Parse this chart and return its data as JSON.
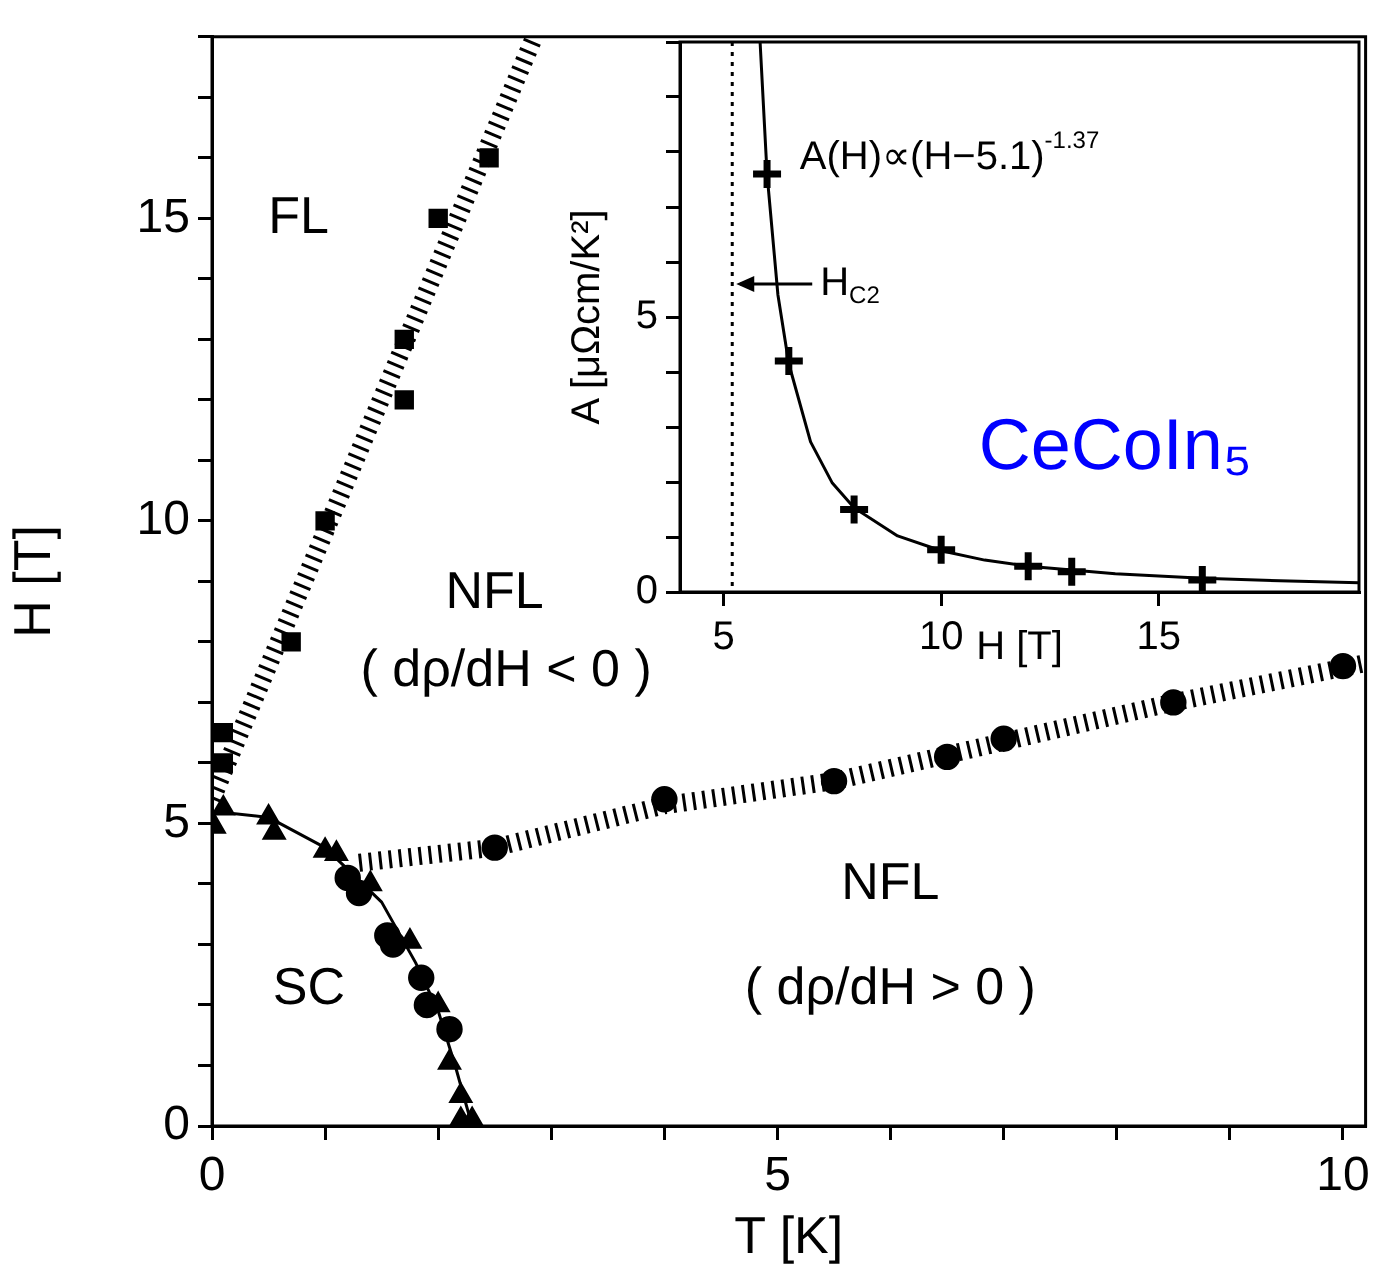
{
  "chart_data": [
    {
      "type": "scatter",
      "xlabel": "T [K]",
      "ylabel": "H [T]",
      "xlim": [
        0,
        10.2
      ],
      "ylim": [
        0,
        18
      ],
      "xticks": [
        0,
        {
          "value": 1,
          "label": null
        },
        {
          "value": 2,
          "label": null
        },
        {
          "value": 3,
          "label": null
        },
        {
          "value": 4,
          "label": null
        },
        5,
        {
          "value": 6,
          "label": null
        },
        {
          "value": 7,
          "label": null
        },
        {
          "value": 8,
          "label": null
        },
        {
          "value": 9,
          "label": null
        },
        10
      ],
      "yticks": [
        0,
        {
          "value": 1,
          "label": null
        },
        {
          "value": 2,
          "label": null
        },
        {
          "value": 3,
          "label": null
        },
        {
          "value": 4,
          "label": null
        },
        5,
        {
          "value": 6,
          "label": null
        },
        {
          "value": 7,
          "label": null
        },
        {
          "value": 8,
          "label": null
        },
        {
          "value": 9,
          "label": null
        },
        10,
        {
          "value": 11,
          "label": null
        },
        {
          "value": 12,
          "label": null
        },
        {
          "value": 13,
          "label": null
        },
        {
          "value": 14,
          "label": null
        },
        15,
        {
          "value": 16,
          "label": null
        },
        {
          "value": 17,
          "label": null
        },
        {
          "value": 18,
          "label": null
        }
      ],
      "series": [
        {
          "type": "line",
          "marker": "none",
          "line_style": "dashed",
          "color": "#000000",
          "x": [
            0,
            2.85
          ],
          "values": [
            5.4,
            18
          ]
        },
        {
          "type": "line",
          "marker": "none",
          "line_style": "dashed",
          "color": "#000000",
          "x": [
            1.3,
            2.5,
            4,
            5.5,
            7,
            8.5,
            10.2
          ],
          "values": [
            4.35,
            4.6,
            5.3,
            5.7,
            6.35,
            7.0,
            7.65
          ]
        },
        {
          "type": "line",
          "marker": "none",
          "line_style": "solid",
          "color": "#000000",
          "x": [
            0,
            0.5,
            1.0,
            1.5,
            1.8,
            2.0,
            2.15,
            2.3
          ],
          "values": [
            5.2,
            5.1,
            4.6,
            3.7,
            2.7,
            1.9,
            1.0,
            0
          ]
        },
        {
          "type": "scatter",
          "marker": "square",
          "color": "#000000",
          "x": [
            0.1,
            0.1,
            0.7,
            1.0,
            1.7,
            1.7,
            2.0,
            2.45
          ],
          "values": [
            6.0,
            6.5,
            8.0,
            10.0,
            12.0,
            13.0,
            15.0,
            16.0
          ]
        },
        {
          "type": "scatter",
          "marker": "circle",
          "color": "#000000",
          "x": [
            2.5,
            4.0,
            5.5,
            6.5,
            7.0,
            8.5,
            10.0
          ],
          "values": [
            4.6,
            5.4,
            5.7,
            6.1,
            6.4,
            7.0,
            7.6
          ]
        },
        {
          "type": "scatter",
          "marker": "triangle",
          "color": "#000000",
          "x": [
            0.1,
            0.5,
            1.1,
            1.4,
            2.0,
            2.1,
            2.2,
            2.3
          ],
          "values": [
            5.25,
            5.1,
            4.5,
            4.0,
            2.0,
            1.05,
            0.5,
            0.1
          ]
        },
        {
          "type": "scatter",
          "marker": "triangle",
          "color": "#000000",
          "x": [
            0.02,
            0.55,
            1.0,
            1.75,
            2.2
          ],
          "values": [
            4.95,
            4.85,
            4.55,
            3.05,
            0.1
          ]
        },
        {
          "type": "scatter",
          "marker": "circle",
          "color": "#000000",
          "x": [
            1.2,
            1.3,
            1.55,
            1.6,
            1.85,
            1.9,
            2.1
          ],
          "values": [
            4.1,
            3.85,
            3.15,
            3.0,
            2.45,
            2.0,
            1.6
          ]
        }
      ],
      "annotations": [
        "FL",
        "NFL",
        "( dρ/dH < 0 )",
        "SC",
        "NFL",
        "( dρ/dH > 0 )"
      ]
    },
    {
      "type": "scatter",
      "xlabel": "H [T]",
      "ylabel": "A [μΩcm/K²]",
      "xlim": [
        4,
        19.6
      ],
      "ylim": [
        0,
        10
      ],
      "xticks": [
        5,
        10,
        15
      ],
      "yticks": [
        0,
        {
          "value": 1,
          "label": null
        },
        {
          "value": 2,
          "label": null
        },
        {
          "value": 3,
          "label": null
        },
        {
          "value": 4,
          "label": null
        },
        5,
        {
          "value": 6,
          "label": null
        },
        {
          "value": 7,
          "label": null
        },
        {
          "value": 8,
          "label": null
        },
        {
          "value": 9,
          "label": null
        },
        {
          "value": 10,
          "label": null
        }
      ],
      "series": [
        {
          "type": "line",
          "marker": "none",
          "line_style": "solid",
          "color": "#000000",
          "x": [
            5.84,
            6,
            6.25,
            6.5,
            7,
            7.5,
            8,
            9,
            10,
            11,
            12,
            14,
            16,
            18,
            19.6
          ],
          "values": [
            10,
            7.6,
            5.4,
            4.15,
            2.73,
            1.98,
            1.53,
            1.02,
            0.75,
            0.58,
            0.47,
            0.33,
            0.25,
            0.2,
            0.17
          ]
        },
        {
          "type": "scatter",
          "marker": "cross",
          "color": "#000000",
          "x": [
            6,
            6.5,
            8,
            10,
            12,
            13,
            16
          ],
          "values": [
            7.6,
            4.2,
            1.5,
            0.77,
            0.47,
            0.37,
            0.22
          ]
        }
      ],
      "ref_lines": [
        {
          "axis": "x",
          "value": 5.2,
          "label": "H$_{C2}$",
          "line_style": "dotted",
          "color": "#000000"
        }
      ],
      "annotations": [
        "A(H)∝(H−5.1)$^{-1.37}$",
        "CeCoIn₅"
      ]
    }
  ]
}
